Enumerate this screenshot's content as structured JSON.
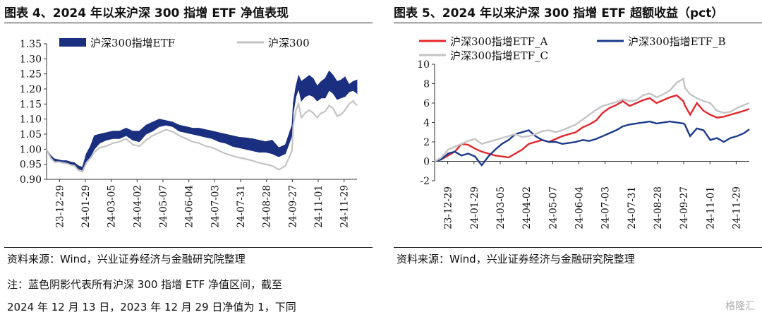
{
  "left": {
    "title": "图表 4、2024 年以来沪深 300 指增 ETF 净值表现",
    "source": "资料来源：Wind，兴业证券经济与金融研究院整理",
    "note_line1": "注：蓝色阴影代表所有沪深 300 指增 ETF 净值区间，截至",
    "note_line2": "2024 年 12 月 13 日，2023 年 12 月 29 日净值为 1，下同"
  },
  "right": {
    "title": "图表 5、2024 年以来沪深 300 指增 ETF 超额收益（pct）",
    "source": "资料来源：Wind，兴业证券经济与金融研究院整理"
  },
  "watermark": "格隆汇",
  "colors": {
    "band": "#1a2f80",
    "hs300": "#c4c4c4",
    "etf_a": "#e4262b",
    "etf_b": "#1a3a8c",
    "etf_c": "#c4c4c4"
  },
  "chart_data": [
    {
      "type": "area",
      "ylim": [
        0.9,
        1.35
      ],
      "yticks": [
        "0.90",
        "0.95",
        "1.00",
        "1.05",
        "1.10",
        "1.15",
        "1.20",
        "1.25",
        "1.30",
        "1.35"
      ],
      "xtick_labels": [
        "23-12-29",
        "24-01-29",
        "24-03-05",
        "24-04-02",
        "24-05-07",
        "24-06-04",
        "24-07-03",
        "24-07-31",
        "24-08-28",
        "24-09-27",
        "24-11-01",
        "24-11-29"
      ],
      "x": [
        0,
        3,
        6,
        9,
        12,
        15,
        18,
        21,
        24,
        27,
        30,
        33,
        36,
        40,
        45,
        50,
        55,
        60,
        65,
        70,
        75,
        80,
        85,
        90,
        95,
        100,
        105,
        110,
        115,
        120,
        125,
        130,
        135,
        140,
        145,
        150,
        155,
        160,
        165,
        170,
        175,
        180,
        185,
        186,
        188,
        190,
        192,
        195,
        198,
        201,
        204,
        207,
        210,
        213,
        216,
        219,
        222,
        225,
        228,
        231,
        234
      ],
      "series": [
        {
          "name": "沪深300指增ETF",
          "kind": "band",
          "lower": [
            1.0,
            0.975,
            0.96,
            0.96,
            0.955,
            0.955,
            0.95,
            0.948,
            0.935,
            0.93,
            0.96,
            0.975,
            1.0,
            1.02,
            1.03,
            1.035,
            1.035,
            1.045,
            1.03,
            1.025,
            1.05,
            1.06,
            1.075,
            1.08,
            1.075,
            1.06,
            1.055,
            1.05,
            1.045,
            1.04,
            1.035,
            1.025,
            1.02,
            1.01,
            1.005,
            1.0,
            0.995,
            0.99,
            0.99,
            0.985,
            0.975,
            0.985,
            1.045,
            1.12,
            1.175,
            1.2,
            1.16,
            1.175,
            1.18,
            1.175,
            1.16,
            1.17,
            1.17,
            1.195,
            1.185,
            1.165,
            1.17,
            1.175,
            1.19,
            1.195,
            1.185
          ],
          "upper": [
            1.0,
            0.98,
            0.968,
            0.965,
            0.962,
            0.962,
            0.958,
            0.955,
            0.945,
            0.94,
            0.985,
            1.01,
            1.045,
            1.05,
            1.055,
            1.06,
            1.06,
            1.07,
            1.06,
            1.06,
            1.08,
            1.09,
            1.1,
            1.095,
            1.09,
            1.08,
            1.075,
            1.07,
            1.07,
            1.065,
            1.06,
            1.055,
            1.05,
            1.045,
            1.04,
            1.038,
            1.035,
            1.03,
            1.025,
            1.03,
            1.005,
            1.015,
            1.08,
            1.155,
            1.21,
            1.245,
            1.225,
            1.235,
            1.245,
            1.235,
            1.21,
            1.225,
            1.235,
            1.26,
            1.245,
            1.225,
            1.23,
            1.24,
            1.215,
            1.225,
            1.23
          ]
        },
        {
          "name": "沪深300",
          "kind": "line",
          "values": [
            1.0,
            0.972,
            0.957,
            0.958,
            0.955,
            0.953,
            0.948,
            0.945,
            0.93,
            0.925,
            0.955,
            0.97,
            0.99,
            1.005,
            1.01,
            1.02,
            1.025,
            1.035,
            1.015,
            1.01,
            1.03,
            1.045,
            1.055,
            1.065,
            1.058,
            1.045,
            1.035,
            1.025,
            1.02,
            1.01,
            1.005,
            0.995,
            0.985,
            0.978,
            0.972,
            0.968,
            0.962,
            0.955,
            0.95,
            0.945,
            0.932,
            0.945,
            0.995,
            1.08,
            1.13,
            1.15,
            1.105,
            1.12,
            1.13,
            1.12,
            1.105,
            1.12,
            1.125,
            1.145,
            1.135,
            1.11,
            1.115,
            1.13,
            1.15,
            1.16,
            1.145
          ]
        }
      ]
    },
    {
      "type": "line",
      "ylim": [
        -2,
        10
      ],
      "yticks": [
        "-2",
        "0",
        "2",
        "4",
        "6",
        "8",
        "10"
      ],
      "xtick_labels": [
        "23-12-29",
        "24-01-29",
        "24-03-05",
        "24-04-02",
        "24-05-07",
        "24-06-04",
        "24-07-03",
        "24-07-31",
        "24-08-28",
        "24-09-27",
        "24-11-01",
        "24-11-29"
      ],
      "x": [
        0,
        5,
        10,
        15,
        20,
        25,
        30,
        35,
        40,
        45,
        50,
        55,
        60,
        65,
        70,
        75,
        80,
        85,
        90,
        95,
        100,
        105,
        110,
        115,
        120,
        125,
        130,
        135,
        140,
        145,
        150,
        155,
        160,
        165,
        170,
        175,
        180,
        185,
        186,
        190,
        195,
        200,
        205,
        210,
        215,
        220,
        225,
        230,
        234
      ],
      "series": [
        {
          "name": "沪深300指增ETF_A",
          "values": [
            0.0,
            0.2,
            0.6,
            1.0,
            1.8,
            1.7,
            1.3,
            1.0,
            0.8,
            0.6,
            0.5,
            0.4,
            0.8,
            1.2,
            1.8,
            2.0,
            2.2,
            2.0,
            2.3,
            2.6,
            2.8,
            3.0,
            3.5,
            3.8,
            4.2,
            5.0,
            5.5,
            5.8,
            6.2,
            5.7,
            6.0,
            6.3,
            6.5,
            6.0,
            6.3,
            6.6,
            6.8,
            6.2,
            5.8,
            4.8,
            6.0,
            5.2,
            4.8,
            4.5,
            4.6,
            4.8,
            5.0,
            5.2,
            5.4
          ]
        },
        {
          "name": "沪深300指增ETF_B",
          "values": [
            0.0,
            0.2,
            0.8,
            1.0,
            0.6,
            0.8,
            0.5,
            -0.4,
            0.5,
            1.2,
            1.8,
            2.2,
            2.8,
            3.0,
            3.2,
            2.6,
            2.2,
            2.0,
            2.0,
            1.8,
            1.9,
            2.0,
            2.2,
            2.1,
            2.3,
            2.6,
            2.9,
            3.2,
            3.6,
            3.8,
            3.9,
            4.0,
            4.1,
            3.9,
            4.0,
            4.1,
            4.0,
            3.9,
            3.8,
            2.6,
            3.4,
            3.2,
            2.2,
            2.4,
            2.0,
            2.4,
            2.6,
            2.9,
            3.3
          ]
        },
        {
          "name": "沪深300指增ETF_C",
          "values": [
            0.0,
            0.4,
            1.2,
            1.5,
            1.8,
            2.1,
            2.3,
            1.8,
            2.0,
            2.2,
            2.4,
            2.6,
            2.8,
            2.5,
            2.6,
            2.8,
            3.1,
            3.2,
            3.0,
            3.2,
            3.5,
            3.8,
            4.3,
            4.8,
            5.3,
            5.7,
            5.9,
            6.1,
            6.4,
            6.2,
            6.3,
            6.8,
            7.0,
            6.6,
            6.9,
            7.3,
            8.1,
            8.5,
            7.6,
            6.9,
            6.5,
            6.2,
            6.0,
            5.2,
            5.0,
            5.1,
            5.5,
            5.8,
            6.0
          ]
        }
      ]
    }
  ]
}
